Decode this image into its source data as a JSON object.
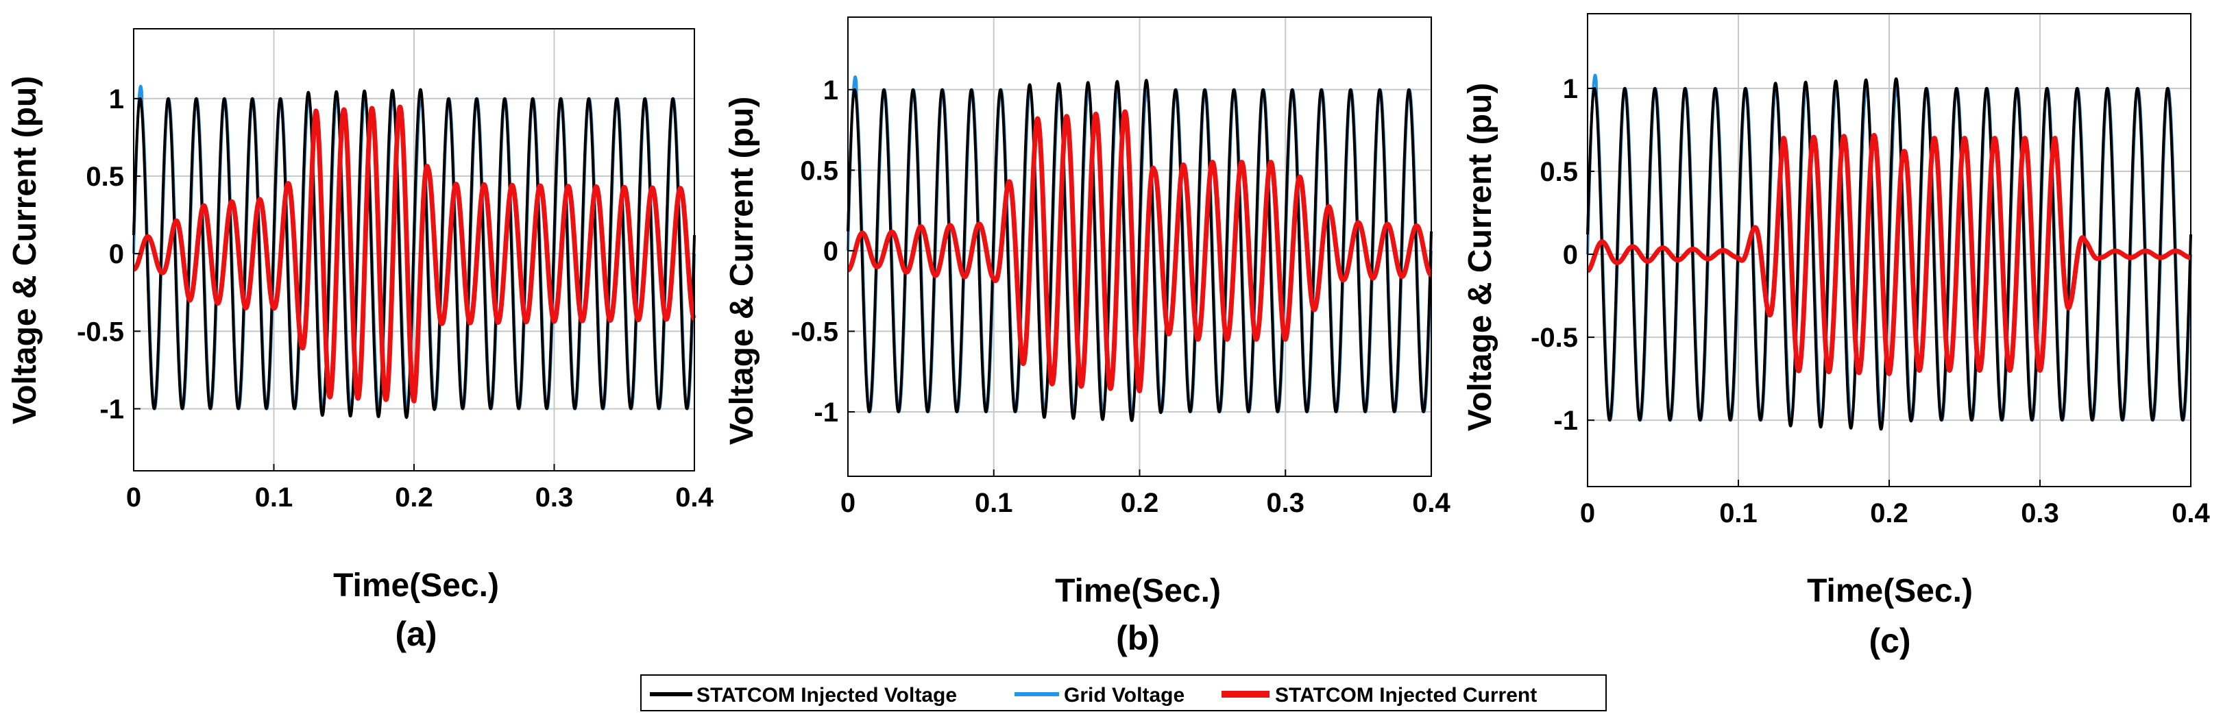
{
  "legend": [
    "STATCOM Injected Voltage",
    "Grid Voltage",
    "STATCOM Injected Current"
  ],
  "colors": {
    "statcom_voltage": "#000000",
    "grid_voltage": "#2196e8",
    "statcom_current": "#ee1111",
    "grid": "#c8c8c8"
  },
  "chart_data": [
    {
      "type": "line",
      "panel": "(a)",
      "xlabel": "Time(Sec.)",
      "ylabel": "Voltage & Current (pu)",
      "xlim": [
        0,
        0.4
      ],
      "ylim": [
        -1.4,
        1.45
      ],
      "xticks": [
        0,
        0.1,
        0.2,
        0.3,
        0.4
      ],
      "xtick_labels": [
        "0",
        "0.1",
        "0.2",
        "0.3",
        "0.4"
      ],
      "yticks": [
        -1,
        -0.5,
        0,
        0.5,
        1
      ],
      "ytick_labels": [
        "-1",
        "-0.5",
        "0",
        "0.5",
        "1"
      ],
      "grid": true,
      "frequency_hz": 50,
      "series": [
        {
          "name": "STATCOM Injected Voltage",
          "color": "#000000",
          "amplitude_envelope": [
            [
              0,
              1.0
            ],
            [
              0.115,
              1.0
            ],
            [
              0.12,
              1.04
            ],
            [
              0.21,
              1.06
            ],
            [
              0.215,
              1.0
            ],
            [
              0.4,
              1.0
            ]
          ]
        },
        {
          "name": "Grid Voltage",
          "color": "#2196e8",
          "amplitude_envelope": [
            [
              0,
              1.0
            ],
            [
              0.4,
              1.0
            ]
          ]
        },
        {
          "name": "STATCOM Injected Current",
          "color": "#ee1111",
          "amplitude_envelope": [
            [
              0,
              0.1
            ],
            [
              0.02,
              0.12
            ],
            [
              0.04,
              0.3
            ],
            [
              0.06,
              0.32
            ],
            [
              0.08,
              0.35
            ],
            [
              0.1,
              0.35
            ],
            [
              0.11,
              0.45
            ],
            [
              0.12,
              0.6
            ],
            [
              0.13,
              0.92
            ],
            [
              0.2,
              0.95
            ],
            [
              0.21,
              0.55
            ],
            [
              0.22,
              0.45
            ],
            [
              0.4,
              0.42
            ]
          ]
        }
      ]
    },
    {
      "type": "line",
      "panel": "(b)",
      "xlabel": "Time(Sec.)",
      "ylabel": "Voltage & Current (pu)",
      "xlim": [
        0,
        0.4
      ],
      "ylim": [
        -1.4,
        1.45
      ],
      "xticks": [
        0,
        0.1,
        0.2,
        0.3,
        0.4
      ],
      "xtick_labels": [
        "0",
        "0.1",
        "0.2",
        "0.3",
        "0.4"
      ],
      "yticks": [
        -1,
        -0.5,
        0,
        0.5,
        1
      ],
      "ytick_labels": [
        "-1",
        "-0.5",
        "0",
        "0.5",
        "1"
      ],
      "grid": true,
      "frequency_hz": 50,
      "series": [
        {
          "name": "STATCOM Injected Voltage",
          "color": "#000000",
          "amplitude_envelope": [
            [
              0,
              1.0
            ],
            [
              0.115,
              1.0
            ],
            [
              0.12,
              1.03
            ],
            [
              0.21,
              1.06
            ],
            [
              0.215,
              1.0
            ],
            [
              0.4,
              1.0
            ]
          ]
        },
        {
          "name": "Grid Voltage",
          "color": "#2196e8",
          "amplitude_envelope": [
            [
              0,
              1.0
            ],
            [
              0.4,
              1.0
            ]
          ]
        },
        {
          "name": "STATCOM Injected Current",
          "color": "#ee1111",
          "amplitude_envelope": [
            [
              0,
              0.12
            ],
            [
              0.02,
              0.1
            ],
            [
              0.05,
              0.15
            ],
            [
              0.1,
              0.17
            ],
            [
              0.11,
              0.42
            ],
            [
              0.12,
              0.7
            ],
            [
              0.13,
              0.82
            ],
            [
              0.2,
              0.87
            ],
            [
              0.21,
              0.5
            ],
            [
              0.24,
              0.55
            ],
            [
              0.3,
              0.55
            ],
            [
              0.34,
              0.18
            ],
            [
              0.4,
              0.15
            ]
          ]
        }
      ]
    },
    {
      "type": "line",
      "panel": "(c)",
      "xlabel": "Time(Sec.)",
      "ylabel": "Voltage & Current (pu)",
      "xlim": [
        0,
        0.4
      ],
      "ylim": [
        -1.4,
        1.45
      ],
      "xticks": [
        0,
        0.1,
        0.2,
        0.3,
        0.4
      ],
      "xtick_labels": [
        "0",
        "0.1",
        "0.2",
        "0.3",
        "0.4"
      ],
      "yticks": [
        -1,
        -0.5,
        0,
        0.5,
        1
      ],
      "ytick_labels": [
        "-1",
        "-0.5",
        "0",
        "0.5",
        "1"
      ],
      "grid": true,
      "frequency_hz": 50,
      "series": [
        {
          "name": "STATCOM Injected Voltage",
          "color": "#000000",
          "amplitude_envelope": [
            [
              0,
              1.0
            ],
            [
              0.115,
              1.0
            ],
            [
              0.12,
              1.03
            ],
            [
              0.21,
              1.06
            ],
            [
              0.215,
              1.0
            ],
            [
              0.4,
              1.0
            ]
          ]
        },
        {
          "name": "Grid Voltage",
          "color": "#2196e8",
          "amplitude_envelope": [
            [
              0,
              1.0
            ],
            [
              0.4,
              1.0
            ]
          ]
        },
        {
          "name": "STATCOM Injected Current",
          "color": "#ee1111",
          "amplitude_envelope": [
            [
              0,
              0.1
            ],
            [
              0.02,
              0.05
            ],
            [
              0.1,
              0.02
            ],
            [
              0.11,
              0.15
            ],
            [
              0.12,
              0.35
            ],
            [
              0.13,
              0.7
            ],
            [
              0.2,
              0.72
            ],
            [
              0.21,
              0.62
            ],
            [
              0.22,
              0.7
            ],
            [
              0.31,
              0.7
            ],
            [
              0.32,
              0.3
            ],
            [
              0.33,
              0.08
            ],
            [
              0.34,
              0.02
            ],
            [
              0.4,
              0.02
            ]
          ]
        }
      ]
    }
  ]
}
